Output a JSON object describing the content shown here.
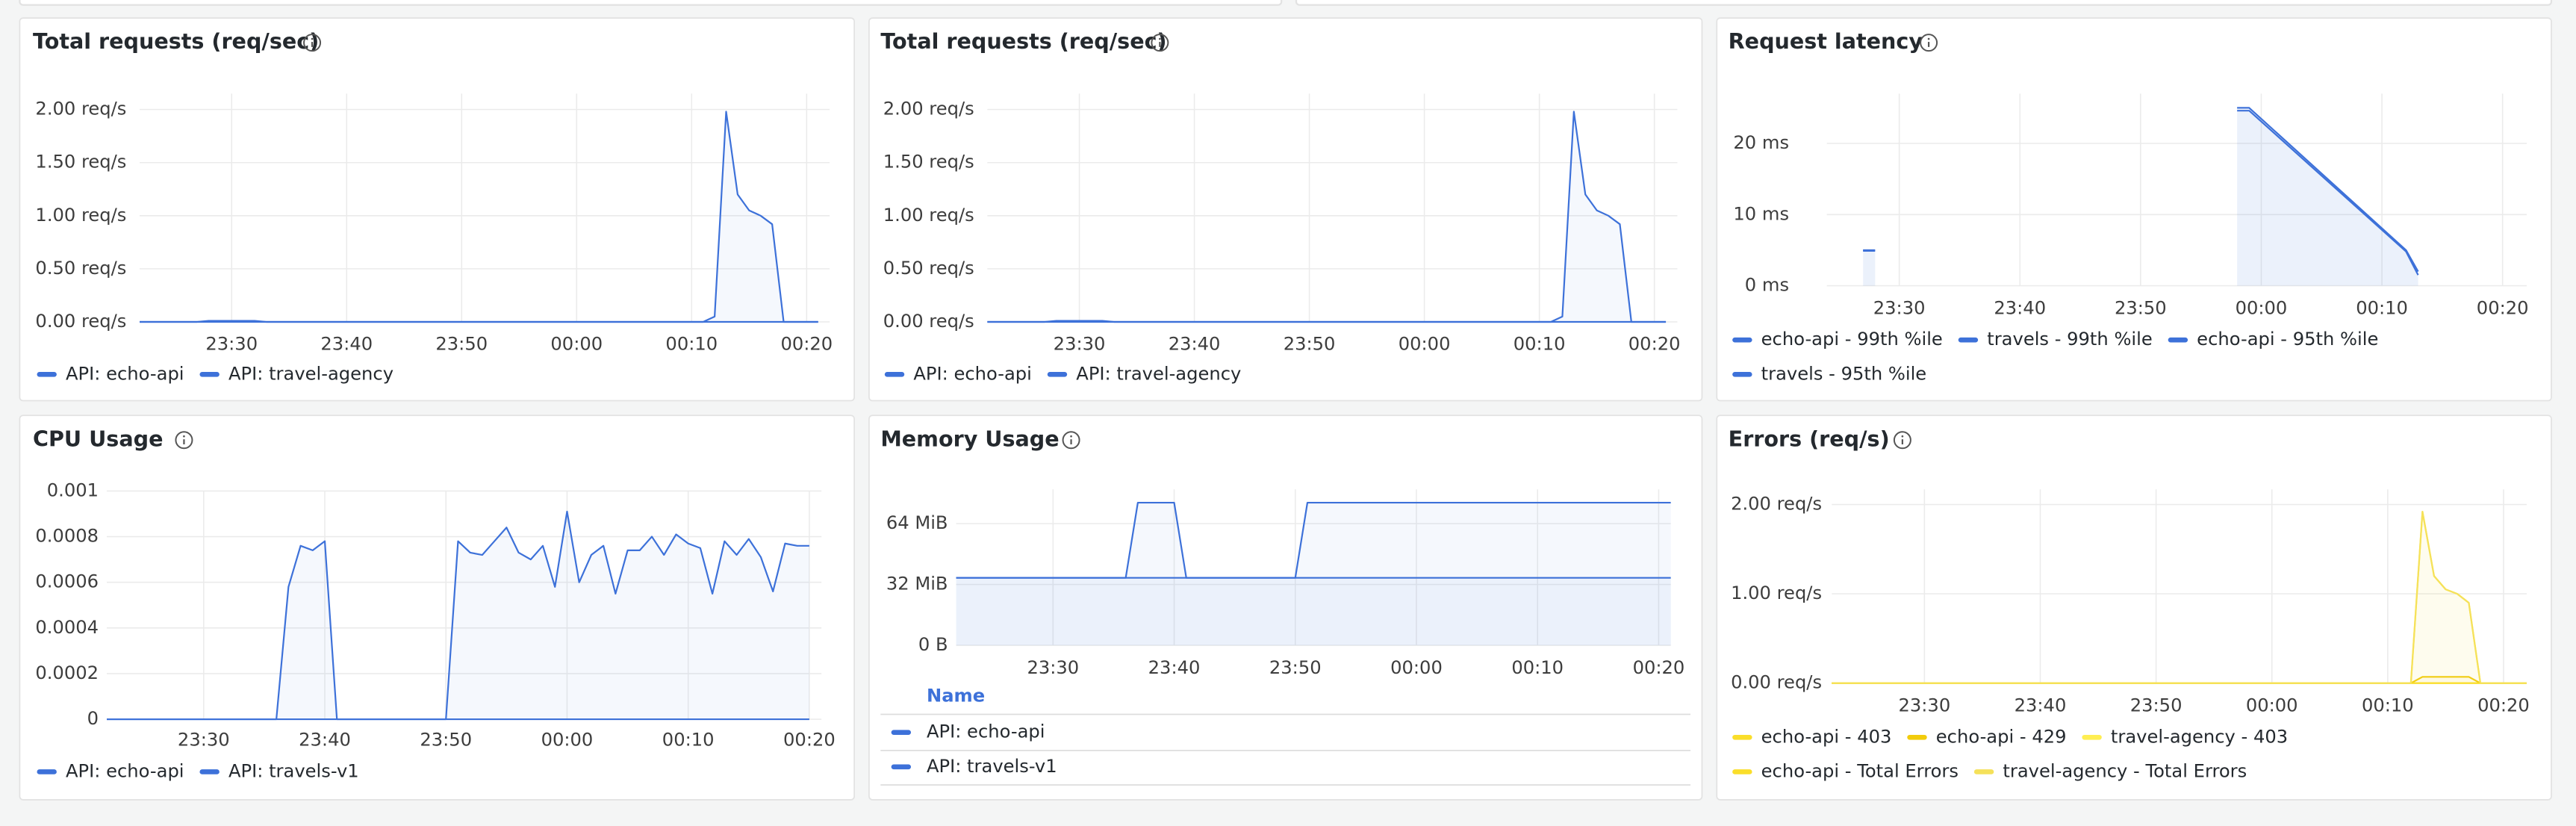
{
  "chart_data": [
    {
      "type": "line",
      "title": "Total requests (req/sec)",
      "x": [
        "23:22",
        "23:27",
        "23:28",
        "23:32",
        "23:33",
        "00:11",
        "00:12",
        "00:13",
        "00:14",
        "00:15",
        "00:16",
        "00:17",
        "00:18",
        "00:21"
      ],
      "xlim": [
        "23:22",
        "00:22"
      ],
      "xticks": [
        "23:30",
        "23:40",
        "23:50",
        "00:00",
        "00:10",
        "00:20"
      ],
      "ylim": [
        0,
        2.15
      ],
      "yticks": [
        {
          "value": 0,
          "label": "0.00 req/s"
        },
        {
          "value": 0.5,
          "label": "0.50 req/s"
        },
        {
          "value": 1,
          "label": "1.00 req/s"
        },
        {
          "value": 1.5,
          "label": "1.50 req/s"
        },
        {
          "value": 2,
          "label": "2.00 req/s"
        }
      ],
      "grid": true,
      "legend": "bottom",
      "series": [
        {
          "name": "API: echo-api",
          "color": "#3d71d9",
          "values": [
            0,
            0,
            0.01,
            0.01,
            0,
            0,
            0,
            0,
            0,
            0,
            0,
            0,
            0,
            0
          ]
        },
        {
          "name": "API: travel-agency",
          "color": "#3d71d9",
          "values": [
            0,
            0,
            0,
            0,
            0,
            0,
            0.05,
            1.98,
            1.2,
            1.05,
            1,
            0.92,
            0,
            0
          ]
        }
      ]
    },
    {
      "type": "line",
      "title": "Total requests (req/sec)",
      "x": [
        "23:22",
        "23:27",
        "23:28",
        "23:32",
        "23:33",
        "00:11",
        "00:12",
        "00:13",
        "00:14",
        "00:15",
        "00:16",
        "00:17",
        "00:18",
        "00:21"
      ],
      "xlim": [
        "23:22",
        "00:22"
      ],
      "xticks": [
        "23:30",
        "23:40",
        "23:50",
        "00:00",
        "00:10",
        "00:20"
      ],
      "ylim": [
        0,
        2.15
      ],
      "yticks": [
        {
          "value": 0,
          "label": "0.00 req/s"
        },
        {
          "value": 0.5,
          "label": "0.50 req/s"
        },
        {
          "value": 1,
          "label": "1.00 req/s"
        },
        {
          "value": 1.5,
          "label": "1.50 req/s"
        },
        {
          "value": 2,
          "label": "2.00 req/s"
        }
      ],
      "grid": true,
      "legend": "bottom",
      "series": [
        {
          "name": "API: echo-api",
          "color": "#3d71d9",
          "values": [
            0,
            0,
            0.01,
            0.01,
            0,
            0,
            0,
            0,
            0,
            0,
            0,
            0,
            0,
            0
          ]
        },
        {
          "name": "API: travel-agency",
          "color": "#3d71d9",
          "values": [
            0,
            0,
            0,
            0,
            0,
            0,
            0.05,
            1.98,
            1.2,
            1.05,
            1,
            0.92,
            0,
            0
          ]
        }
      ]
    },
    {
      "type": "line",
      "title": "Request latency",
      "x": [
        "23:27",
        "23:28",
        "23:58",
        "23:59",
        "00:12",
        "00:13"
      ],
      "xlim": [
        "23:24",
        "00:22"
      ],
      "xticks": [
        "23:30",
        "23:40",
        "23:50",
        "00:00",
        "00:10",
        "00:20"
      ],
      "ylim": [
        0,
        27
      ],
      "yticks": [
        {
          "value": 0,
          "label": "0 ms"
        },
        {
          "value": 10,
          "label": "10 ms"
        },
        {
          "value": 20,
          "label": "20 ms"
        }
      ],
      "grid": true,
      "legend": "bottom",
      "series": [
        {
          "name": "echo-api - 99th %ile",
          "color": "#3d71d9",
          "values": [
            5,
            5,
            null,
            null,
            null,
            null
          ]
        },
        {
          "name": "travels - 99th %ile",
          "color": "#3d71d9",
          "values": [
            null,
            null,
            25,
            25,
            5,
            2
          ]
        },
        {
          "name": "echo-api - 95th %ile",
          "color": "#3d71d9",
          "values": [
            4.9,
            4.9,
            null,
            null,
            null,
            null
          ]
        },
        {
          "name": "travels - 95th %ile",
          "color": "#3d71d9",
          "values": [
            null,
            null,
            24.6,
            24.6,
            4.8,
            1.5
          ]
        }
      ]
    },
    {
      "type": "line",
      "title": "CPU Usage",
      "x": [
        "23:22",
        "23:36",
        "23:37",
        "23:38",
        "23:39",
        "23:40",
        "23:41",
        "23:50",
        "23:51",
        "23:52",
        "23:53",
        "23:54",
        "23:55",
        "23:56",
        "23:57",
        "23:58",
        "23:59",
        "00:00",
        "00:01",
        "00:02",
        "00:03",
        "00:04",
        "00:05",
        "00:06",
        "00:07",
        "00:08",
        "00:09",
        "00:10",
        "00:11",
        "00:12",
        "00:13",
        "00:14",
        "00:15",
        "00:16",
        "00:17",
        "00:18",
        "00:19",
        "00:20"
      ],
      "xlim": [
        "23:22",
        "00:21"
      ],
      "xticks": [
        "23:30",
        "23:40",
        "23:50",
        "00:00",
        "00:10",
        "00:20"
      ],
      "ylim": [
        0,
        0.001
      ],
      "yticks": [
        0,
        0.0002,
        0.0004,
        0.0006,
        0.0008,
        0.001
      ],
      "grid": true,
      "legend": "bottom",
      "series": [
        {
          "name": "API: echo-api",
          "color": "#3d71d9",
          "values": [
            0,
            0,
            0,
            0,
            0,
            0,
            0,
            0,
            0,
            0,
            0,
            0,
            0,
            0,
            0,
            0,
            0,
            0,
            0,
            0,
            0,
            0,
            0,
            0,
            0,
            0,
            0,
            0,
            0,
            0,
            0,
            0,
            0,
            0,
            0,
            0,
            0,
            0
          ]
        },
        {
          "name": "API: travels-v1",
          "color": "#3d71d9",
          "values": [
            0,
            0,
            0.00058,
            0.00076,
            0.00074,
            0.00078,
            0,
            0,
            0.00078,
            0.00073,
            0.00072,
            0.00078,
            0.00084,
            0.00073,
            0.0007,
            0.00076,
            0.00058,
            0.00091,
            0.0006,
            0.00072,
            0.00076,
            0.00055,
            0.00074,
            0.00074,
            0.0008,
            0.00072,
            0.00081,
            0.00077,
            0.00075,
            0.00055,
            0.00078,
            0.00072,
            0.00079,
            0.00071,
            0.00056,
            0.00077,
            0.00076,
            0.00076
          ]
        }
      ]
    },
    {
      "type": "line",
      "title": "Memory Usage",
      "x": [
        "23:22",
        "23:36",
        "23:37",
        "23:40",
        "23:41",
        "23:50",
        "23:51",
        "00:21"
      ],
      "xlim": [
        "23:22",
        "00:21"
      ],
      "xticks": [
        "23:30",
        "23:40",
        "23:50",
        "00:00",
        "00:10",
        "00:20"
      ],
      "ylim": [
        0,
        82
      ],
      "yticks": [
        {
          "value": 0,
          "label": "0 B"
        },
        {
          "value": 32,
          "label": "32 MiB"
        },
        {
          "value": 64,
          "label": "64 MiB"
        }
      ],
      "grid": true,
      "legend": "table",
      "legend_title": "Name",
      "series": [
        {
          "name": "API: echo-api",
          "color": "#3d71d9",
          "values": [
            35.5,
            35.5,
            35.5,
            35.5,
            35.5,
            35.5,
            35.5,
            35.5
          ]
        },
        {
          "name": "API: travels-v1",
          "color": "#3d71d9",
          "values": [
            35.5,
            35.5,
            75,
            75,
            35.5,
            35.5,
            75,
            75
          ]
        }
      ]
    },
    {
      "type": "line",
      "title": "Errors (req/s)",
      "x": [
        "23:22",
        "00:12",
        "00:13",
        "00:14",
        "00:15",
        "00:16",
        "00:17",
        "00:18",
        "00:22"
      ],
      "xlim": [
        "23:22",
        "00:22"
      ],
      "xticks": [
        "23:30",
        "23:40",
        "23:50",
        "00:00",
        "00:10",
        "00:20"
      ],
      "ylim": [
        0,
        2.17
      ],
      "yticks": [
        {
          "value": 0,
          "label": "0.00 req/s"
        },
        {
          "value": 1,
          "label": "1.00 req/s"
        },
        {
          "value": 2,
          "label": "2.00 req/s"
        }
      ],
      "grid": true,
      "legend": "bottom",
      "series": [
        {
          "name": "echo-api - 403",
          "color": "#fade2a",
          "values": [
            0,
            0,
            0,
            0,
            0,
            0,
            0,
            0,
            0
          ]
        },
        {
          "name": "echo-api - 429",
          "color": "#f2cc0c",
          "values": [
            0,
            0,
            0.07,
            0.07,
            0.07,
            0.07,
            0.07,
            0,
            0
          ]
        },
        {
          "name": "travel-agency - 403",
          "color": "#ffee52",
          "values": [
            0,
            0,
            1.92,
            1.2,
            1.05,
            1,
            0.9,
            0,
            0
          ]
        },
        {
          "name": "echo-api - Total Errors",
          "color": "#fade2a",
          "values": [
            0,
            0,
            0,
            0,
            0,
            0,
            0,
            0,
            0
          ]
        },
        {
          "name": "travel-agency - Total Errors",
          "color": "#f5e15a",
          "values": [
            0,
            0,
            1.92,
            1.2,
            1.05,
            1,
            0.9,
            0,
            0
          ]
        }
      ]
    }
  ]
}
